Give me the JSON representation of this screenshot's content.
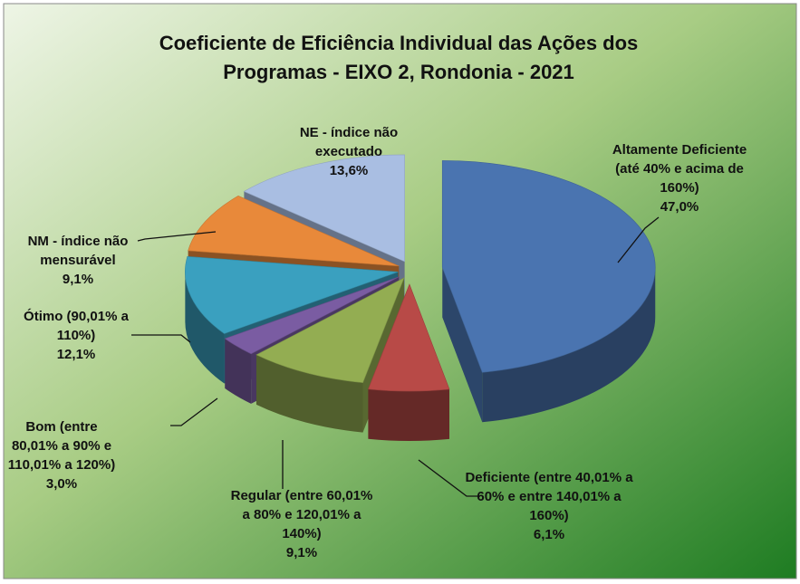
{
  "chart_data": {
    "type": "pie3d",
    "title": "Coeficiente de Eficiência Individual das Ações dos Programas - EIXO  2, Rondonia - 2021",
    "categories": [
      "Altamente Deficiente (até 40% e acima de 160%)",
      "Deficiente (entre 40,01% a 60% e entre 140,01% a 160%)",
      "Regular (entre 60,01% a 80% e 120,01% a 140%)",
      "Bom (entre 80,01% a 90% e 110,01% a 120%)",
      "Ótimo (90,01% a 110%)",
      "NM - índice não mensurável",
      "NE - índice não executado"
    ],
    "values": [
      47.0,
      6.1,
      9.1,
      3.0,
      12.1,
      9.1,
      13.6
    ],
    "value_labels": [
      "47,0%",
      "6,1%",
      "9,1%",
      "3,0%",
      "12,1%",
      "9,1%",
      "13,6%"
    ],
    "colors": [
      "#4a74b0",
      "#b84a47",
      "#93ad52",
      "#7a5ca2",
      "#3aa0bf",
      "#e8893a",
      "#a9bee2"
    ]
  }
}
